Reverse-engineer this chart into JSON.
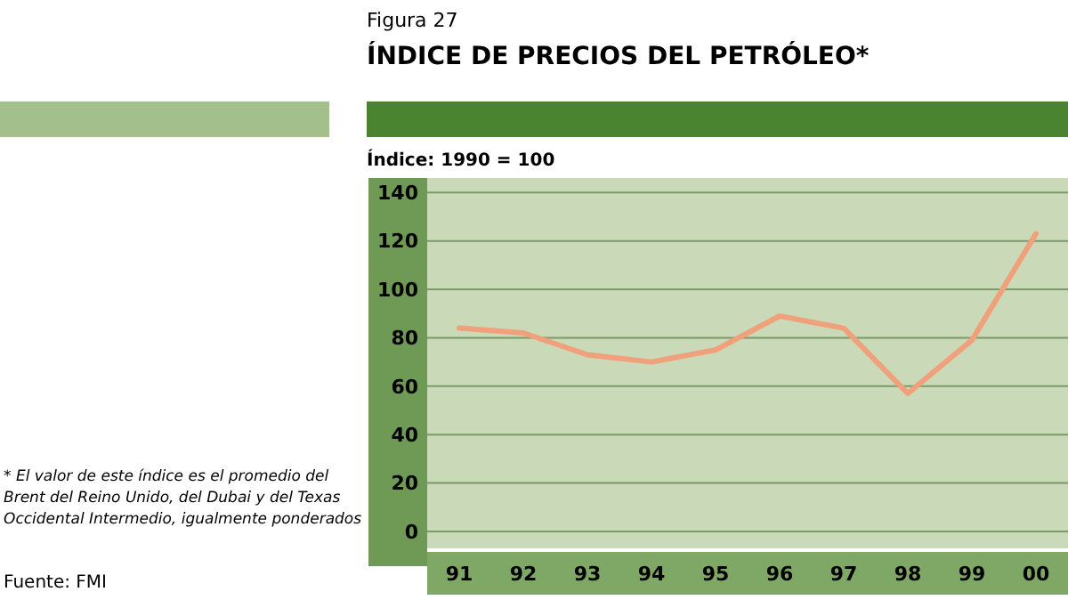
{
  "chart_data": {
    "type": "line",
    "title": "ÍNDICE DE PRECIOS DEL PETRÓLEO*",
    "ylabel": "Índice: 1990 = 100",
    "annotations": [
      "Figura 27",
      "* El valor de este índice es el promedio del Brent del Reino Unido, del Dubai y del Texas Occidental Intermedio, igualmente ponderados",
      "Fuente: FMI"
    ],
    "categories": [
      "91",
      "92",
      "93",
      "94",
      "95",
      "96",
      "97",
      "98",
      "99",
      "00"
    ],
    "series": [
      {
        "color": "#f0a07a",
        "values": [
          84,
          82,
          73,
          70,
          75,
          89,
          84,
          57,
          79,
          123
        ]
      }
    ],
    "ylim": [
      -7,
      146
    ],
    "yticks": [
      0,
      20,
      40,
      60,
      80,
      100,
      120,
      140
    ],
    "grid": "y",
    "marker": "none",
    "line_style": "solid"
  }
}
